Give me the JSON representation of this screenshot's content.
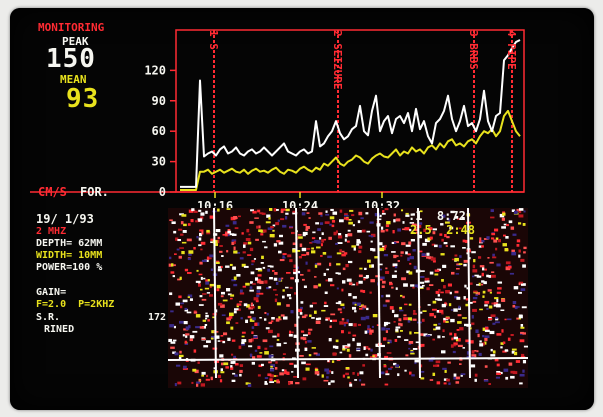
{
  "header": {
    "monitoring": "MONITORING",
    "peak_label": "PEAK",
    "peak_value": "150",
    "mean_label": "MEAN",
    "mean_value": "93"
  },
  "mode_label": "CM/S",
  "mode_direction": "FOR.",
  "date": "19/ 1/93",
  "settings": {
    "probe": "2 MHZ",
    "depth": "DEPTH= 62MM",
    "width": "WIDTH= 10MM",
    "power": "POWER=100 %",
    "gain_label": "GAIN=",
    "filter": "F=2.0  P=2KHZ",
    "sr_label": "S.R.",
    "sr_value": "172",
    "mode": "RINED"
  },
  "event_labels": [
    "1 S",
    "2 SEIZURE",
    "3 BRBS",
    "4 PIPE"
  ],
  "chart_data": {
    "type": "line",
    "ylim": [
      0,
      150
    ],
    "y_ticks": [
      "120",
      "90",
      "60",
      "30",
      "0"
    ],
    "x_ticks": [
      "10:16",
      "10:24",
      "10:32"
    ],
    "series": [
      {
        "color": "#ffffff",
        "values": [
          5,
          5,
          5,
          5,
          5,
          110,
          35,
          38,
          40,
          36,
          42,
          45,
          38,
          40,
          44,
          38,
          36,
          40,
          42,
          38,
          40,
          44,
          40,
          36,
          40,
          44,
          48,
          40,
          38,
          36,
          40,
          42,
          38,
          40,
          70,
          45,
          48,
          55,
          60,
          70,
          58,
          52,
          55,
          62,
          65,
          85,
          60,
          56,
          80,
          95,
          60,
          70,
          75,
          58,
          72,
          75,
          68,
          78,
          60,
          82,
          62,
          70,
          55,
          48,
          68,
          72,
          80,
          95,
          72,
          60,
          70,
          85,
          65,
          68,
          60,
          72,
          100,
          70,
          60,
          75,
          78,
          130,
          135,
          142,
          148,
          150
        ]
      },
      {
        "color": "#e8e21d",
        "values": [
          2,
          2,
          2,
          2,
          2,
          20,
          20,
          22,
          18,
          20,
          22,
          19,
          21,
          23,
          20,
          19,
          22,
          18,
          21,
          23,
          20,
          21,
          19,
          22,
          24,
          20,
          18,
          22,
          21,
          19,
          23,
          25,
          22,
          20,
          24,
          22,
          28,
          26,
          30,
          34,
          28,
          26,
          30,
          32,
          36,
          34,
          30,
          28,
          33,
          36,
          38,
          35,
          34,
          38,
          42,
          36,
          40,
          38,
          44,
          40,
          42,
          38,
          44,
          46,
          42,
          48,
          44,
          50,
          52,
          46,
          48,
          45,
          50,
          52,
          48,
          55,
          60,
          58,
          62,
          55,
          60,
          75,
          80,
          70,
          60,
          55
        ]
      }
    ]
  },
  "readouts": {
    "line1": ":1  8:72",
    "line2": "2.5  2:48"
  }
}
